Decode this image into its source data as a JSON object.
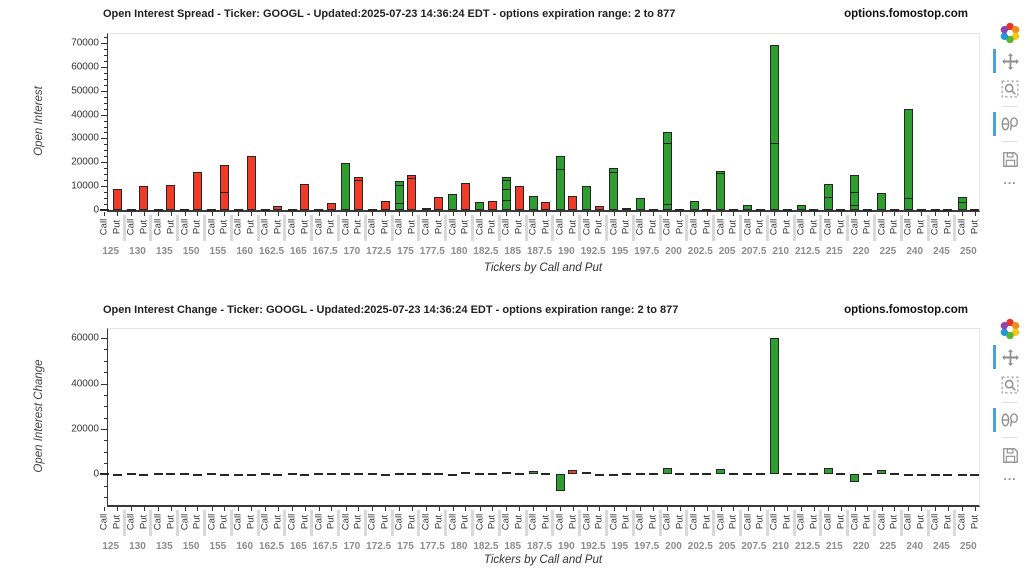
{
  "chart_data": [
    {
      "type": "bar",
      "title": "Open Interest Spread - Ticker: GOOGL - Updated:2025-07-23 14:36:24 EDT - options expiration range: 2 to 877",
      "watermark": "options.fomostop.com",
      "ylabel": "Open Interest",
      "xlabel": "Tickers by Call and Put",
      "x_sublabels": [
        "Call",
        "Put"
      ],
      "categories": [
        "125",
        "130",
        "135",
        "150",
        "155",
        "160",
        "162.5",
        "165",
        "167.5",
        "170",
        "172.5",
        "175",
        "177.5",
        "180",
        "182.5",
        "185",
        "187.5",
        "190",
        "192.5",
        "195",
        "197.5",
        "200",
        "202.5",
        "205",
        "207.5",
        "210",
        "212.5",
        "215",
        "220",
        "225",
        "240",
        "245",
        "250"
      ],
      "series": [
        {
          "name": "Call",
          "color": "#2e9e30",
          "values": [
            300,
            300,
            400,
            300,
            400,
            400,
            200,
            300,
            300,
            19500,
            500,
            12000,
            900,
            6500,
            3200,
            14000,
            6000,
            22500,
            10000,
            17500,
            5000,
            32500,
            3600,
            16500,
            2200,
            69000,
            2000,
            11000,
            14800,
            7000,
            42500,
            300,
            5500
          ]
        },
        {
          "name": "Put",
          "color": "#ef3b28",
          "values": [
            9000,
            10000,
            10500,
            16000,
            19000,
            22500,
            1500,
            11000,
            2800,
            13800,
            3600,
            14500,
            5500,
            11500,
            3800,
            10000,
            3200,
            6000,
            1800,
            1000,
            400,
            600,
            300,
            500,
            200,
            200,
            150,
            150,
            250,
            150,
            150,
            100,
            150
          ]
        }
      ],
      "segments": {
        "Call": {
          "175": [
            3000,
            10500
          ],
          "185": [
            4200,
            8700,
            12600
          ],
          "190": [
            17000
          ],
          "195": [
            16000
          ],
          "200": [
            2500,
            28000
          ],
          "205": [
            15500
          ],
          "210": [
            28000
          ],
          "215": [
            5500
          ],
          "220": [
            2000,
            7500
          ],
          "240": [
            5000
          ],
          "250": [
            3500
          ]
        },
        "Put": {
          "155": [
            7500
          ],
          "170": [
            12500
          ],
          "175": [
            13600
          ]
        }
      },
      "ylim": [
        0,
        73800
      ],
      "yticks": [
        0,
        10000,
        20000,
        30000,
        40000,
        50000,
        60000,
        70000
      ],
      "yminor_step": 2500,
      "grid": false,
      "legend": "none"
    },
    {
      "type": "bar",
      "title": "Open Interest Change - Ticker: GOOGL - Updated:2025-07-23 14:36:24 EDT - options expiration range: 2 to 877",
      "watermark": "options.fomostop.com",
      "ylabel": "Open Interest Change",
      "xlabel": "Tickers by Call and Put",
      "x_sublabels": [
        "Call",
        "Put"
      ],
      "categories": [
        "125",
        "130",
        "135",
        "150",
        "155",
        "160",
        "162.5",
        "165",
        "167.5",
        "170",
        "172.5",
        "175",
        "177.5",
        "180",
        "182.5",
        "185",
        "187.5",
        "190",
        "192.5",
        "195",
        "197.5",
        "200",
        "202.5",
        "205",
        "207.5",
        "210",
        "212.5",
        "215",
        "220",
        "225",
        "240",
        "245",
        "250"
      ],
      "series": [
        {
          "name": "Call",
          "color": "#2e9e30",
          "values": [
            100,
            100,
            800,
            100,
            200,
            -300,
            300,
            300,
            100,
            300,
            400,
            500,
            300,
            -400,
            400,
            1000,
            1500,
            -7500,
            1000,
            -800,
            800,
            3000,
            800,
            2200,
            500,
            60000,
            500,
            3000,
            -3500,
            2000,
            -300,
            -200,
            -400
          ]
        },
        {
          "name": "Put",
          "color": "#ef3b28",
          "values": [
            -200,
            -200,
            800,
            -300,
            -400,
            -300,
            -200,
            -300,
            800,
            800,
            -400,
            500,
            600,
            1200,
            800,
            600,
            800,
            2000,
            -600,
            200,
            100,
            200,
            100,
            300,
            100,
            200,
            100,
            200,
            100,
            100,
            -100,
            -100,
            -200
          ]
        }
      ],
      "segments": {
        "Call": {},
        "Put": {}
      },
      "ylim": [
        -13500,
        64000
      ],
      "yticks": [
        0,
        20000,
        40000,
        60000
      ],
      "yminor_step": 5000,
      "grid": false,
      "legend": "none"
    }
  ],
  "toolbar": {
    "logo_name": "fomostop-logo",
    "logo_colors": [
      "#e6332a",
      "#f08c1e",
      "#f3c91b",
      "#5cb531",
      "#1f9cd7",
      "#8e44ad"
    ],
    "more_label": "...",
    "icons": [
      {
        "name": "pan",
        "active": true
      },
      {
        "name": "zoom-box",
        "active": false
      },
      {
        "name": "compare-hover",
        "active": true,
        "sep_before": true
      },
      {
        "name": "save",
        "active": false,
        "sep_before": true
      }
    ]
  }
}
